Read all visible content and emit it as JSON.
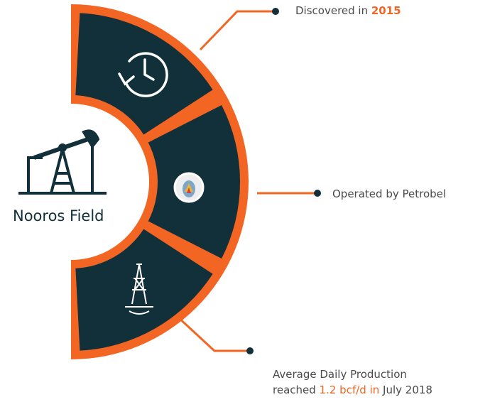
{
  "title": "Nooros Field",
  "items": [
    {
      "parts": [
        "Discovered in",
        "2015"
      ]
    },
    {
      "parts": [
        "Operated by Petrobel"
      ]
    },
    {
      "lines": [
        [
          "Average Daily Production"
        ],
        [
          "reached",
          "1.2 bcf/d in",
          "July 2018"
        ]
      ]
    }
  ]
}
